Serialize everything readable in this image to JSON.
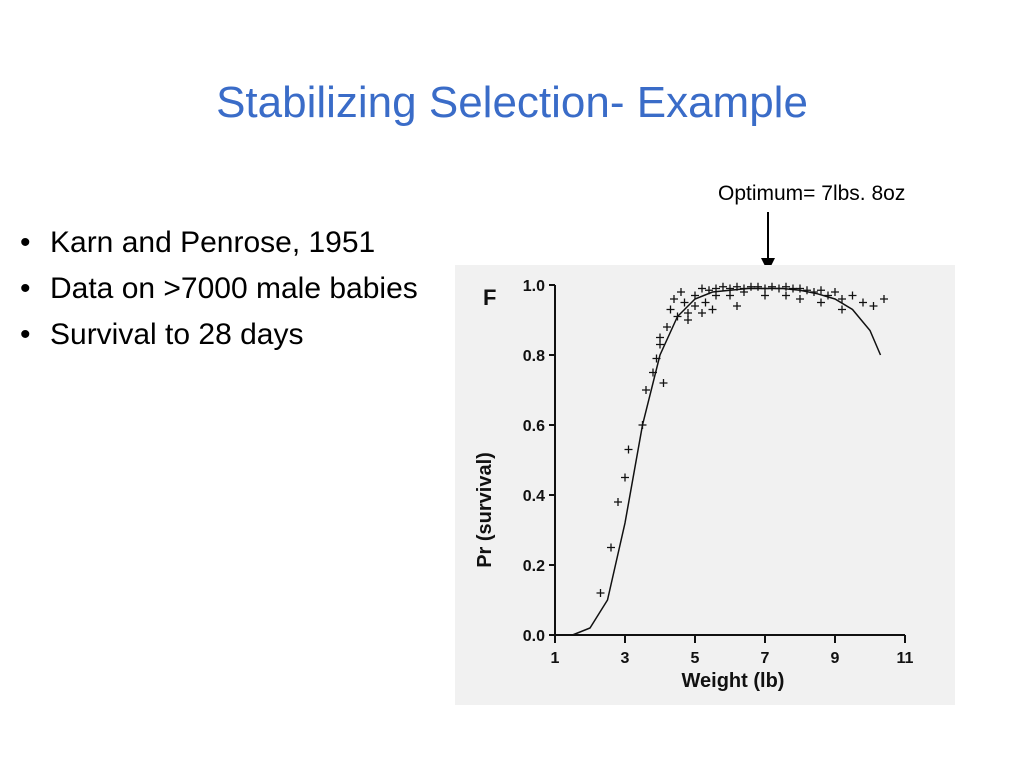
{
  "slide": {
    "title": "Stabilizing Selection- Example",
    "annotation": "Optimum= 7lbs. 8oz",
    "bullets": [
      "Karn and Penrose, 1951",
      "Data on >7000 male babies",
      "Survival to 28 days"
    ]
  },
  "chart_data": {
    "type": "scatter",
    "xlabel": "Weight (lb)",
    "ylabel": "Pr (survival)",
    "top_label": "F",
    "xlim": [
      1,
      11
    ],
    "ylim": [
      0,
      1.0
    ],
    "xticks": [
      1,
      3,
      5,
      7,
      9,
      11
    ],
    "yticks": [
      0.0,
      0.2,
      0.4,
      0.6,
      0.8,
      1.0
    ],
    "ytick_labels": [
      "0.0",
      "0.2",
      "0.4",
      "0.6",
      "0.8",
      "1.0"
    ],
    "series": [
      {
        "marker": "plus",
        "points": [
          [
            2.3,
            0.12
          ],
          [
            2.6,
            0.25
          ],
          [
            2.8,
            0.38
          ],
          [
            3.0,
            0.45
          ],
          [
            3.1,
            0.53
          ],
          [
            3.5,
            0.6
          ],
          [
            3.6,
            0.7
          ],
          [
            3.8,
            0.75
          ],
          [
            4.0,
            0.83
          ],
          [
            4.2,
            0.88
          ],
          [
            4.0,
            0.85
          ],
          [
            4.3,
            0.93
          ],
          [
            4.4,
            0.96
          ],
          [
            4.6,
            0.98
          ],
          [
            4.7,
            0.95
          ],
          [
            4.8,
            0.92
          ],
          [
            5.0,
            0.97
          ],
          [
            5.2,
            0.99
          ],
          [
            5.4,
            0.985
          ],
          [
            5.6,
            0.99
          ],
          [
            5.8,
            0.995
          ],
          [
            6.0,
            0.99
          ],
          [
            6.2,
            0.995
          ],
          [
            6.4,
            0.99
          ],
          [
            6.6,
            0.995
          ],
          [
            6.8,
            0.995
          ],
          [
            7.0,
            0.99
          ],
          [
            7.2,
            0.995
          ],
          [
            7.4,
            0.99
          ],
          [
            7.6,
            0.995
          ],
          [
            7.8,
            0.99
          ],
          [
            8.0,
            0.99
          ],
          [
            8.2,
            0.985
          ],
          [
            8.4,
            0.98
          ],
          [
            8.6,
            0.985
          ],
          [
            8.8,
            0.97
          ],
          [
            9.0,
            0.98
          ],
          [
            9.2,
            0.96
          ],
          [
            9.5,
            0.97
          ],
          [
            9.8,
            0.95
          ],
          [
            10.1,
            0.94
          ],
          [
            10.4,
            0.96
          ],
          [
            5.0,
            0.94
          ],
          [
            5.3,
            0.95
          ],
          [
            5.6,
            0.97
          ],
          [
            6.0,
            0.97
          ],
          [
            6.4,
            0.98
          ],
          [
            7.0,
            0.97
          ],
          [
            7.6,
            0.97
          ],
          [
            8.0,
            0.96
          ],
          [
            8.6,
            0.95
          ],
          [
            9.2,
            0.93
          ],
          [
            4.8,
            0.9
          ],
          [
            5.2,
            0.92
          ],
          [
            5.5,
            0.93
          ],
          [
            6.2,
            0.94
          ],
          [
            4.5,
            0.91
          ],
          [
            3.9,
            0.79
          ],
          [
            4.1,
            0.72
          ]
        ]
      },
      {
        "name": "",
        "kind": "fitted-curve",
        "points": [
          [
            1.5,
            0.0
          ],
          [
            2.0,
            0.02
          ],
          [
            2.5,
            0.1
          ],
          [
            3.0,
            0.32
          ],
          [
            3.5,
            0.6
          ],
          [
            4.0,
            0.8
          ],
          [
            4.5,
            0.91
          ],
          [
            5.0,
            0.96
          ],
          [
            5.5,
            0.98
          ],
          [
            6.0,
            0.985
          ],
          [
            6.5,
            0.99
          ],
          [
            7.0,
            0.99
          ],
          [
            7.5,
            0.99
          ],
          [
            8.0,
            0.985
          ],
          [
            8.5,
            0.975
          ],
          [
            9.0,
            0.96
          ],
          [
            9.5,
            0.93
          ],
          [
            10.0,
            0.87
          ],
          [
            10.3,
            0.8
          ]
        ]
      }
    ]
  }
}
